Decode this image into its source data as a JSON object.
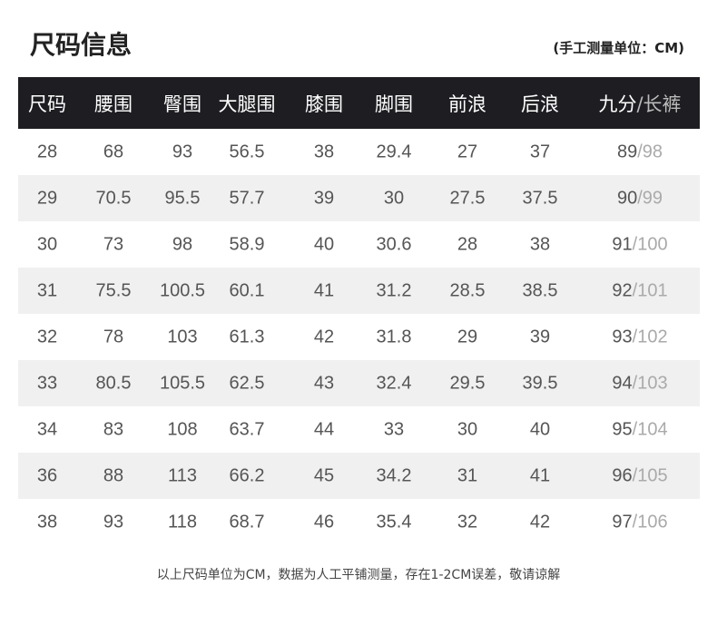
{
  "title": "尺码信息",
  "unit_note": "(手工测量单位：CM)",
  "headers": [
    "尺码",
    "腰围",
    "臀围",
    "大腿围",
    "膝围",
    "脚围",
    "前浪",
    "后浪"
  ],
  "last_header": {
    "a": "九分",
    "sep": "/",
    "b": "长裤"
  },
  "rows": [
    [
      "28",
      "68",
      "93",
      "56.5",
      "38",
      "29.4",
      "27",
      "37",
      "89",
      "98"
    ],
    [
      "29",
      "70.5",
      "95.5",
      "57.7",
      "39",
      "30",
      "27.5",
      "37.5",
      "90",
      "99"
    ],
    [
      "30",
      "73",
      "98",
      "58.9",
      "40",
      "30.6",
      "28",
      "38",
      "91",
      "100"
    ],
    [
      "31",
      "75.5",
      "100.5",
      "60.1",
      "41",
      "31.2",
      "28.5",
      "38.5",
      "92",
      "101"
    ],
    [
      "32",
      "78",
      "103",
      "61.3",
      "42",
      "31.8",
      "29",
      "39",
      "93",
      "102"
    ],
    [
      "33",
      "80.5",
      "105.5",
      "62.5",
      "43",
      "32.4",
      "29.5",
      "39.5",
      "94",
      "103"
    ],
    [
      "34",
      "83",
      "108",
      "63.7",
      "44",
      "33",
      "30",
      "40",
      "95",
      "104"
    ],
    [
      "36",
      "88",
      "113",
      "66.2",
      "45",
      "34.2",
      "31",
      "41",
      "96",
      "105"
    ],
    [
      "38",
      "93",
      "118",
      "68.7",
      "46",
      "35.4",
      "32",
      "42",
      "97",
      "106"
    ]
  ],
  "footer": "以上尺码单位为CM，数据为人工平铺测量，存在1-2CM误差，敬请谅解",
  "colors": {
    "header_bg": "#1e1d22",
    "alt_row": "#f0f0f0"
  }
}
